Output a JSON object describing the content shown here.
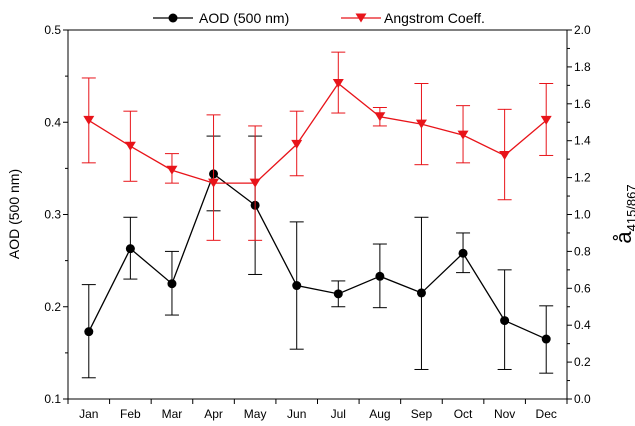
{
  "chart_data": {
    "type": "line",
    "categories": [
      "Jan",
      "Feb",
      "Mar",
      "Apr",
      "May",
      "Jun",
      "Jul",
      "Aug",
      "Sep",
      "Oct",
      "Nov",
      "Dec"
    ],
    "title": "",
    "xlabel": "",
    "ylabel": "AOD (500 nm)",
    "y2label": {
      "base": "å",
      "subscript": "415/867"
    },
    "ylim": [
      0.1,
      0.5
    ],
    "y2lim": [
      0.0,
      2.0
    ],
    "yticks": [
      "0.1",
      "0.2",
      "0.3",
      "0.4",
      "0.5"
    ],
    "y2ticks": [
      "0.0",
      "0.2",
      "0.4",
      "0.6",
      "0.8",
      "1.0",
      "1.2",
      "1.4",
      "1.6",
      "1.8",
      "2.0"
    ],
    "grid": false,
    "legend_position": "top",
    "series": [
      {
        "name": "AOD (500 nm)",
        "axis": "left",
        "color": "#000000",
        "marker": "circle",
        "values": [
          0.173,
          0.263,
          0.225,
          0.344,
          0.31,
          0.223,
          0.214,
          0.233,
          0.215,
          0.258,
          0.185,
          0.165
        ],
        "error_low": [
          0.123,
          0.23,
          0.191,
          0.304,
          0.235,
          0.154,
          0.2,
          0.199,
          0.132,
          0.237,
          0.132,
          0.128
        ],
        "error_high": [
          0.224,
          0.297,
          0.26,
          0.385,
          0.385,
          0.292,
          0.228,
          0.268,
          0.297,
          0.28,
          0.24,
          0.201
        ]
      },
      {
        "name": "Angstrom Coeff.",
        "axis": "right",
        "color": "#e8141a",
        "marker": "triangle-down",
        "values": [
          1.51,
          1.37,
          1.24,
          1.17,
          1.17,
          1.38,
          1.71,
          1.53,
          1.49,
          1.43,
          1.32,
          1.51
        ],
        "error_low": [
          1.28,
          1.18,
          1.17,
          0.86,
          0.86,
          1.21,
          1.55,
          1.48,
          1.27,
          1.28,
          1.08,
          1.32
        ],
        "error_high": [
          1.74,
          1.56,
          1.33,
          1.54,
          1.48,
          1.56,
          1.88,
          1.58,
          1.71,
          1.59,
          1.57,
          1.71
        ]
      }
    ]
  }
}
